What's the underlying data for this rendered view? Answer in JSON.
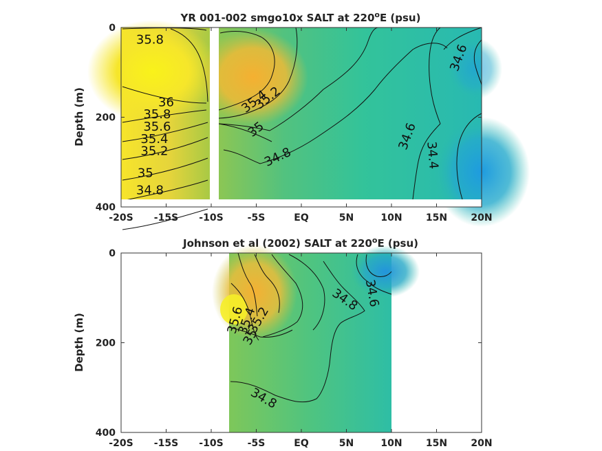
{
  "chart_data": [
    {
      "type": "heatmap",
      "title": "YR 001-002 smgo10x SALT at 220°E (psu)",
      "title_parts": {
        "pre": "YR 001-002 smgo10x SALT at 220",
        "sup": "o",
        "post": "E (psu)"
      },
      "ylabel": "Depth (m)",
      "xlim": [
        -20,
        20
      ],
      "ylim": [
        0,
        400
      ],
      "y_reversed": true,
      "x_ticks": [
        -20,
        -15,
        -10,
        -5,
        0,
        5,
        10,
        15,
        20
      ],
      "x_tick_labels": [
        "-20S",
        "-15S",
        "-10S",
        "-5S",
        "EQ",
        "5N",
        "10N",
        "15N",
        "20N"
      ],
      "y_ticks": [
        0,
        200,
        400
      ],
      "y_tick_labels": [
        "0",
        "200",
        "400"
      ],
      "data_extent": {
        "x": [
          -20,
          20
        ],
        "depth": [
          0,
          380
        ]
      },
      "gap": {
        "x": [
          -9.5,
          -8.6
        ]
      },
      "contour_levels": [
        34.4,
        34.6,
        34.8,
        35,
        35.2,
        35.4,
        35.6,
        35.8,
        36
      ],
      "contour_labels": [
        {
          "text": "35.8",
          "x": -16.8,
          "depth": 28,
          "angle": 0
        },
        {
          "text": "36",
          "x": -15.0,
          "depth": 168,
          "angle": 0
        },
        {
          "text": "35.8",
          "x": -16.0,
          "depth": 195,
          "angle": 0
        },
        {
          "text": "35.6",
          "x": -16.0,
          "depth": 222,
          "angle": 0
        },
        {
          "text": "35.4",
          "x": -16.3,
          "depth": 250,
          "angle": 0
        },
        {
          "text": "35.2",
          "x": -16.3,
          "depth": 277,
          "angle": 0
        },
        {
          "text": "35",
          "x": -17.3,
          "depth": 326,
          "angle": 0
        },
        {
          "text": "34.8",
          "x": -16.8,
          "depth": 364,
          "angle": 0
        },
        {
          "text": "35.4",
          "x": -5.2,
          "depth": 166,
          "angle": -38
        },
        {
          "text": "35.2",
          "x": -3.7,
          "depth": 158,
          "angle": -38
        },
        {
          "text": "35",
          "x": -5.0,
          "depth": 228,
          "angle": -38
        },
        {
          "text": "34.8",
          "x": -2.6,
          "depth": 290,
          "angle": -25
        },
        {
          "text": "34.6",
          "x": 17.5,
          "depth": 68,
          "angle": -70
        },
        {
          "text": "34.6",
          "x": 11.8,
          "depth": 243,
          "angle": -70
        },
        {
          "text": "34.4",
          "x": 14.5,
          "depth": 285,
          "angle": 85
        }
      ]
    },
    {
      "type": "heatmap",
      "title": "Johnson et al (2002) SALT at 220°E (psu)",
      "title_parts": {
        "pre": "Johnson et al (2002) SALT at 220",
        "sup": "o",
        "post": "E (psu)"
      },
      "ylabel": "Depth (m)",
      "xlim": [
        -20,
        20
      ],
      "ylim": [
        0,
        400
      ],
      "y_reversed": true,
      "x_ticks": [
        -20,
        -15,
        -10,
        -5,
        0,
        5,
        10,
        15,
        20
      ],
      "x_tick_labels": [
        "-20S",
        "-15S",
        "-10S",
        "-5S",
        "EQ",
        "5N",
        "10N",
        "15N",
        "20N"
      ],
      "y_ticks": [
        0,
        200,
        400
      ],
      "y_tick_labels": [
        "0",
        "200",
        "400"
      ],
      "data_extent": {
        "x": [
          -8,
          10
        ],
        "depth": [
          0,
          400
        ]
      },
      "contour_levels": [
        34.6,
        34.8,
        35,
        35.2,
        35.4,
        35.6
      ],
      "contour_labels": [
        {
          "text": "35.6",
          "x": -7.3,
          "depth": 150,
          "angle": -75
        },
        {
          "text": "35.4",
          "x": -6.0,
          "depth": 152,
          "angle": -70
        },
        {
          "text": "35.2",
          "x": -4.7,
          "depth": 150,
          "angle": -60
        },
        {
          "text": "35",
          "x": -5.6,
          "depth": 188,
          "angle": -60
        },
        {
          "text": "34.8",
          "x": 4.8,
          "depth": 105,
          "angle": 35
        },
        {
          "text": "34.6",
          "x": 7.8,
          "depth": 90,
          "angle": 80
        },
        {
          "text": "34.8",
          "x": -4.2,
          "depth": 325,
          "angle": 30
        }
      ]
    }
  ]
}
